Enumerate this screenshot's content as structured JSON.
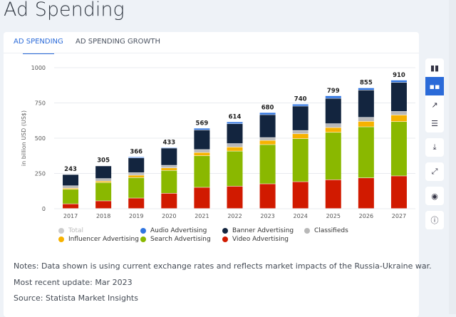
{
  "page_title": "Ad Spending",
  "tabs": [
    {
      "label": "AD SPENDING",
      "active": true
    },
    {
      "label": "AD SPENDING GROWTH",
      "active": false
    }
  ],
  "side_toolbar": [
    "bar-chart-icon",
    "stacked-bar-icon",
    "line-chart-icon",
    "table-icon",
    "download-icon",
    "expand-icon",
    "hide-icon",
    "info-icon"
  ],
  "notes": {
    "notes": "Notes: Data shown is using current exchange rates and reflects market impacts of the Russia-Ukraine war.",
    "update": "Most recent update: Mar 2023",
    "source": "Source: Statista Market Insights"
  },
  "chart_data": {
    "type": "bar",
    "stacked": true,
    "ylabel": "in billion USD (US$)",
    "ylim": [
      0,
      1000
    ],
    "yticks": [
      "0",
      "250",
      "500",
      "750",
      "1000"
    ],
    "grid": true,
    "legend_position": "bottom",
    "categories": [
      "2017",
      "2018",
      "2019",
      "2020",
      "2021",
      "2022",
      "2023",
      "2024",
      "2025",
      "2026",
      "2027"
    ],
    "totals": [
      243,
      305,
      366,
      433,
      569,
      614,
      680,
      740,
      799,
      855,
      910
    ],
    "legend_total": {
      "name": "Total",
      "color": "#cccccc"
    },
    "series": [
      {
        "name": "Video Advertising",
        "color": "#d11a00",
        "values": [
          33,
          54,
          74,
          108,
          150,
          158,
          175,
          190,
          204,
          217,
          231
        ]
      },
      {
        "name": "Search Advertising",
        "color": "#8ab800",
        "values": [
          103,
          130,
          145,
          162,
          224,
          249,
          278,
          305,
          336,
          362,
          385
        ]
      },
      {
        "name": "Influencer Advertising",
        "color": "#f7b200",
        "values": [
          8,
          10,
          17,
          18,
          23,
          29,
          30,
          35,
          34,
          39,
          47
        ]
      },
      {
        "name": "Classifieds",
        "color": "#b8b8b8",
        "values": [
          17,
          18,
          18,
          18,
          21,
          24,
          20,
          23,
          27,
          28,
          25
        ]
      },
      {
        "name": "Banner Advertising",
        "color": "#13253f",
        "values": [
          80,
          90,
          105,
          122,
          139,
          141,
          162,
          173,
          180,
          194,
          206
        ]
      },
      {
        "name": "Audio Advertising",
        "color": "#2f74e0",
        "values": [
          2,
          3,
          7,
          5,
          12,
          13,
          15,
          14,
          18,
          15,
          16
        ]
      }
    ]
  }
}
